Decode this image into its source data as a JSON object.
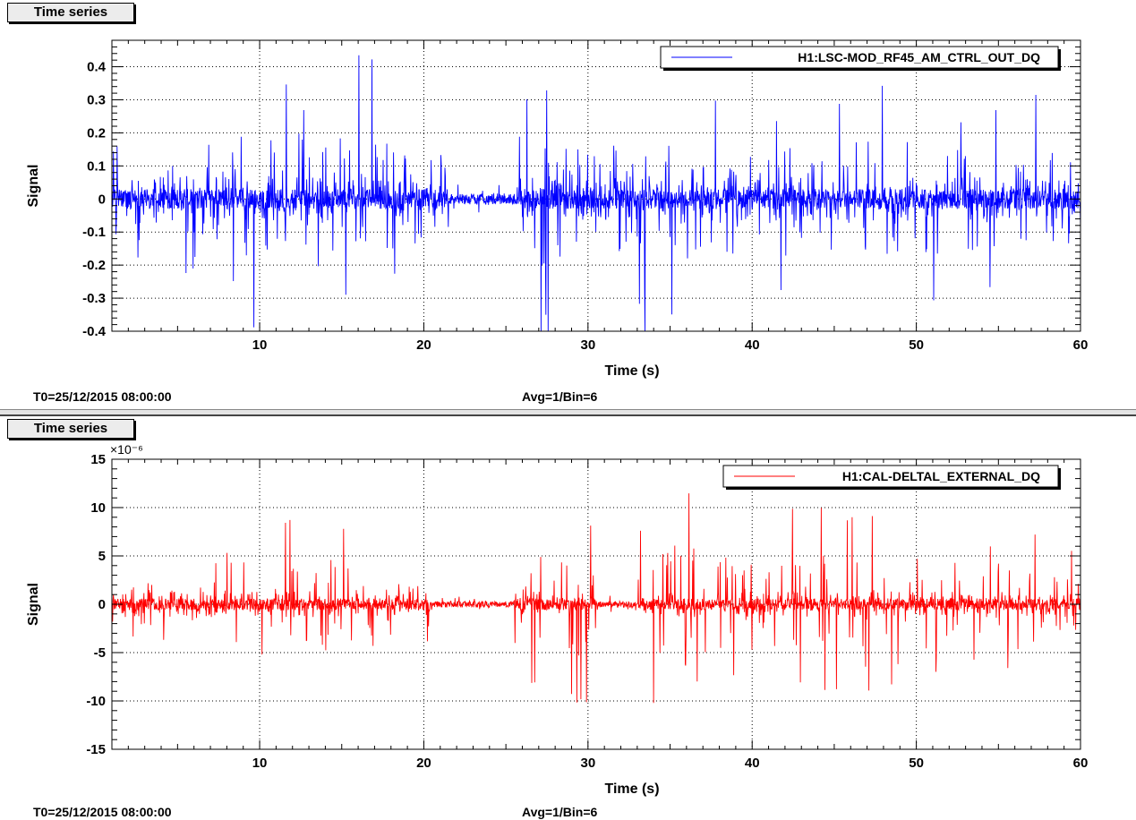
{
  "panels": [
    {
      "tab_label": "Time series",
      "footer_left": "T0=25/12/2015 08:00:00",
      "footer_mid": "Avg=1/Bin=6"
    },
    {
      "tab_label": "Time series",
      "footer_left": "T0=25/12/2015 08:00:00",
      "footer_mid": "Avg=1/Bin=6"
    }
  ],
  "chart_data": [
    {
      "type": "line",
      "title": "",
      "xlabel": "Time (s)",
      "ylabel": "Signal",
      "xlim": [
        1,
        60
      ],
      "ylim": [
        -0.4,
        0.48
      ],
      "x_ticks": [
        10,
        20,
        30,
        40,
        50,
        60
      ],
      "y_ticks": [
        -0.4,
        -0.3,
        -0.2,
        -0.1,
        0,
        0.1,
        0.2,
        0.3,
        0.4
      ],
      "y_tick_labels": [
        "-0.4",
        "-0.3",
        "-0.2",
        "-0.1",
        "0",
        "0.1",
        "0.2",
        "0.3",
        "0.4"
      ],
      "exponent_label": "",
      "grid": true,
      "legend_position": "top-right",
      "series": [
        {
          "name": "H1:LSC-MOD_RF45_AM_CTRL_OUT_DQ",
          "color": "#0000ff",
          "noise_amplitude": 0.03,
          "spike_envelope": [
            [
              1,
              0.3
            ],
            [
              3,
              0.2
            ],
            [
              5,
              0.25
            ],
            [
              7,
              0.3
            ],
            [
              9,
              0.45
            ],
            [
              12,
              0.4
            ],
            [
              14,
              0.42
            ],
            [
              17,
              0.45
            ],
            [
              19,
              0.3
            ],
            [
              21,
              0.25
            ],
            [
              23,
              0.15
            ],
            [
              25,
              0.1
            ],
            [
              27,
              0.48
            ],
            [
              29,
              0.4
            ],
            [
              31,
              0.3
            ],
            [
              33,
              0.45
            ],
            [
              36,
              0.4
            ],
            [
              38,
              0.42
            ],
            [
              40,
              0.38
            ],
            [
              42,
              0.35
            ],
            [
              44,
              0.3
            ],
            [
              47,
              0.45
            ],
            [
              50,
              0.42
            ],
            [
              53,
              0.35
            ],
            [
              56,
              0.3
            ],
            [
              58,
              0.35
            ],
            [
              60,
              0.25
            ]
          ],
          "quiet_intervals": [
            [
              21.5,
              25.8
            ]
          ]
        }
      ]
    },
    {
      "type": "line",
      "title": "",
      "xlabel": "Time (s)",
      "ylabel": "Signal",
      "xlim": [
        1,
        60
      ],
      "ylim": [
        -15,
        15
      ],
      "x_ticks": [
        10,
        20,
        30,
        40,
        50,
        60
      ],
      "y_ticks": [
        -15,
        -10,
        -5,
        0,
        5,
        10,
        15
      ],
      "y_tick_labels": [
        "-15",
        "-10",
        "-5",
        "0",
        "5",
        "10",
        "15"
      ],
      "exponent_label": "×10⁻⁶",
      "grid": true,
      "legend_position": "top-right",
      "series": [
        {
          "name": "H1:CAL-DELTAL_EXTERNAL_DQ",
          "color": "#ff0000",
          "noise_amplitude": 0.6,
          "spike_envelope": [
            [
              1,
              5
            ],
            [
              3,
              6
            ],
            [
              5,
              4
            ],
            [
              7,
              5
            ],
            [
              9,
              10
            ],
            [
              12,
              9
            ],
            [
              14,
              11
            ],
            [
              16,
              12
            ],
            [
              18,
              8
            ],
            [
              20,
              4
            ],
            [
              22,
              3
            ],
            [
              25,
              2
            ],
            [
              27,
              11
            ],
            [
              29,
              14
            ],
            [
              31,
              6
            ],
            [
              33,
              8
            ],
            [
              35,
              14
            ],
            [
              37,
              15
            ],
            [
              39,
              9
            ],
            [
              42,
              10
            ],
            [
              45,
              11
            ],
            [
              48,
              9
            ],
            [
              51,
              8
            ],
            [
              54,
              7
            ],
            [
              57,
              12
            ],
            [
              60,
              5
            ]
          ],
          "quiet_intervals": [
            [
              20.5,
              25.5
            ],
            [
              30.5,
              33.0
            ]
          ]
        }
      ]
    }
  ]
}
